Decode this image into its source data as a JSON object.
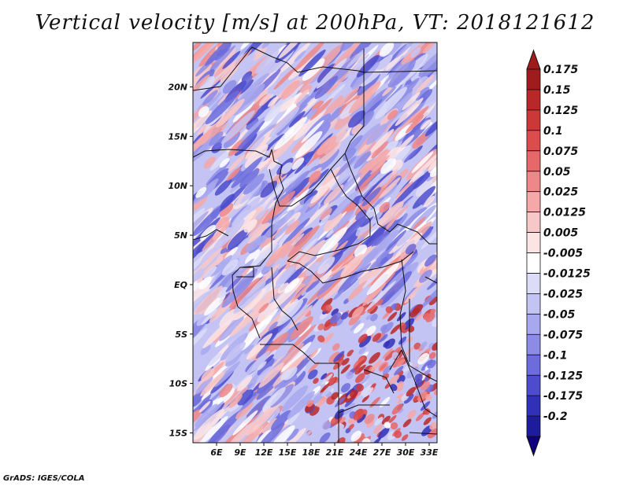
{
  "title": "Vertical velocity [m/s] at 200hPa, VT: 2018121612",
  "credit": "GrADS: IGES/COLA",
  "map": {
    "lon_range": [
      3,
      34
    ],
    "lat_range": [
      -16,
      24.5
    ],
    "lon_ticks": [
      {
        "value": 6,
        "label": "6E"
      },
      {
        "value": 9,
        "label": "9E"
      },
      {
        "value": 12,
        "label": "12E"
      },
      {
        "value": 15,
        "label": "15E"
      },
      {
        "value": 18,
        "label": "18E"
      },
      {
        "value": 21,
        "label": "21E"
      },
      {
        "value": 24,
        "label": "24E"
      },
      {
        "value": 27,
        "label": "27E"
      },
      {
        "value": 30,
        "label": "30E"
      },
      {
        "value": 33,
        "label": "33E"
      }
    ],
    "lat_ticks": [
      {
        "value": 20,
        "label": "20N"
      },
      {
        "value": 15,
        "label": "15N"
      },
      {
        "value": 10,
        "label": "10N"
      },
      {
        "value": 5,
        "label": "5N"
      },
      {
        "value": 0,
        "label": "EQ"
      },
      {
        "value": -5,
        "label": "5S"
      },
      {
        "value": -10,
        "label": "10S"
      },
      {
        "value": -15,
        "label": "15S"
      }
    ]
  },
  "colorbar": {
    "levels": [
      "0.175",
      "0.15",
      "0.125",
      "0.1",
      "0.075",
      "0.05",
      "0.025",
      "0.0125",
      "0.005",
      "-0.005",
      "-0.0125",
      "-0.025",
      "-0.05",
      "-0.075",
      "-0.1",
      "-0.125",
      "-0.175",
      "-0.2"
    ],
    "colors": [
      "#a01c1c",
      "#b82828",
      "#cc3838",
      "#dc4c4c",
      "#e66868",
      "#ee8888",
      "#f4a8a8",
      "#f8c8c8",
      "#fce4e4",
      "#ffffff",
      "#dcdcf8",
      "#c4c4f4",
      "#a8a8ee",
      "#8c8ce6",
      "#6c6cdc",
      "#4c4ccc",
      "#3030b8",
      "#1c1c9c",
      "#100080"
    ],
    "top_arrow_color": "#a01c1c",
    "bottom_arrow_color": "#100080"
  }
}
